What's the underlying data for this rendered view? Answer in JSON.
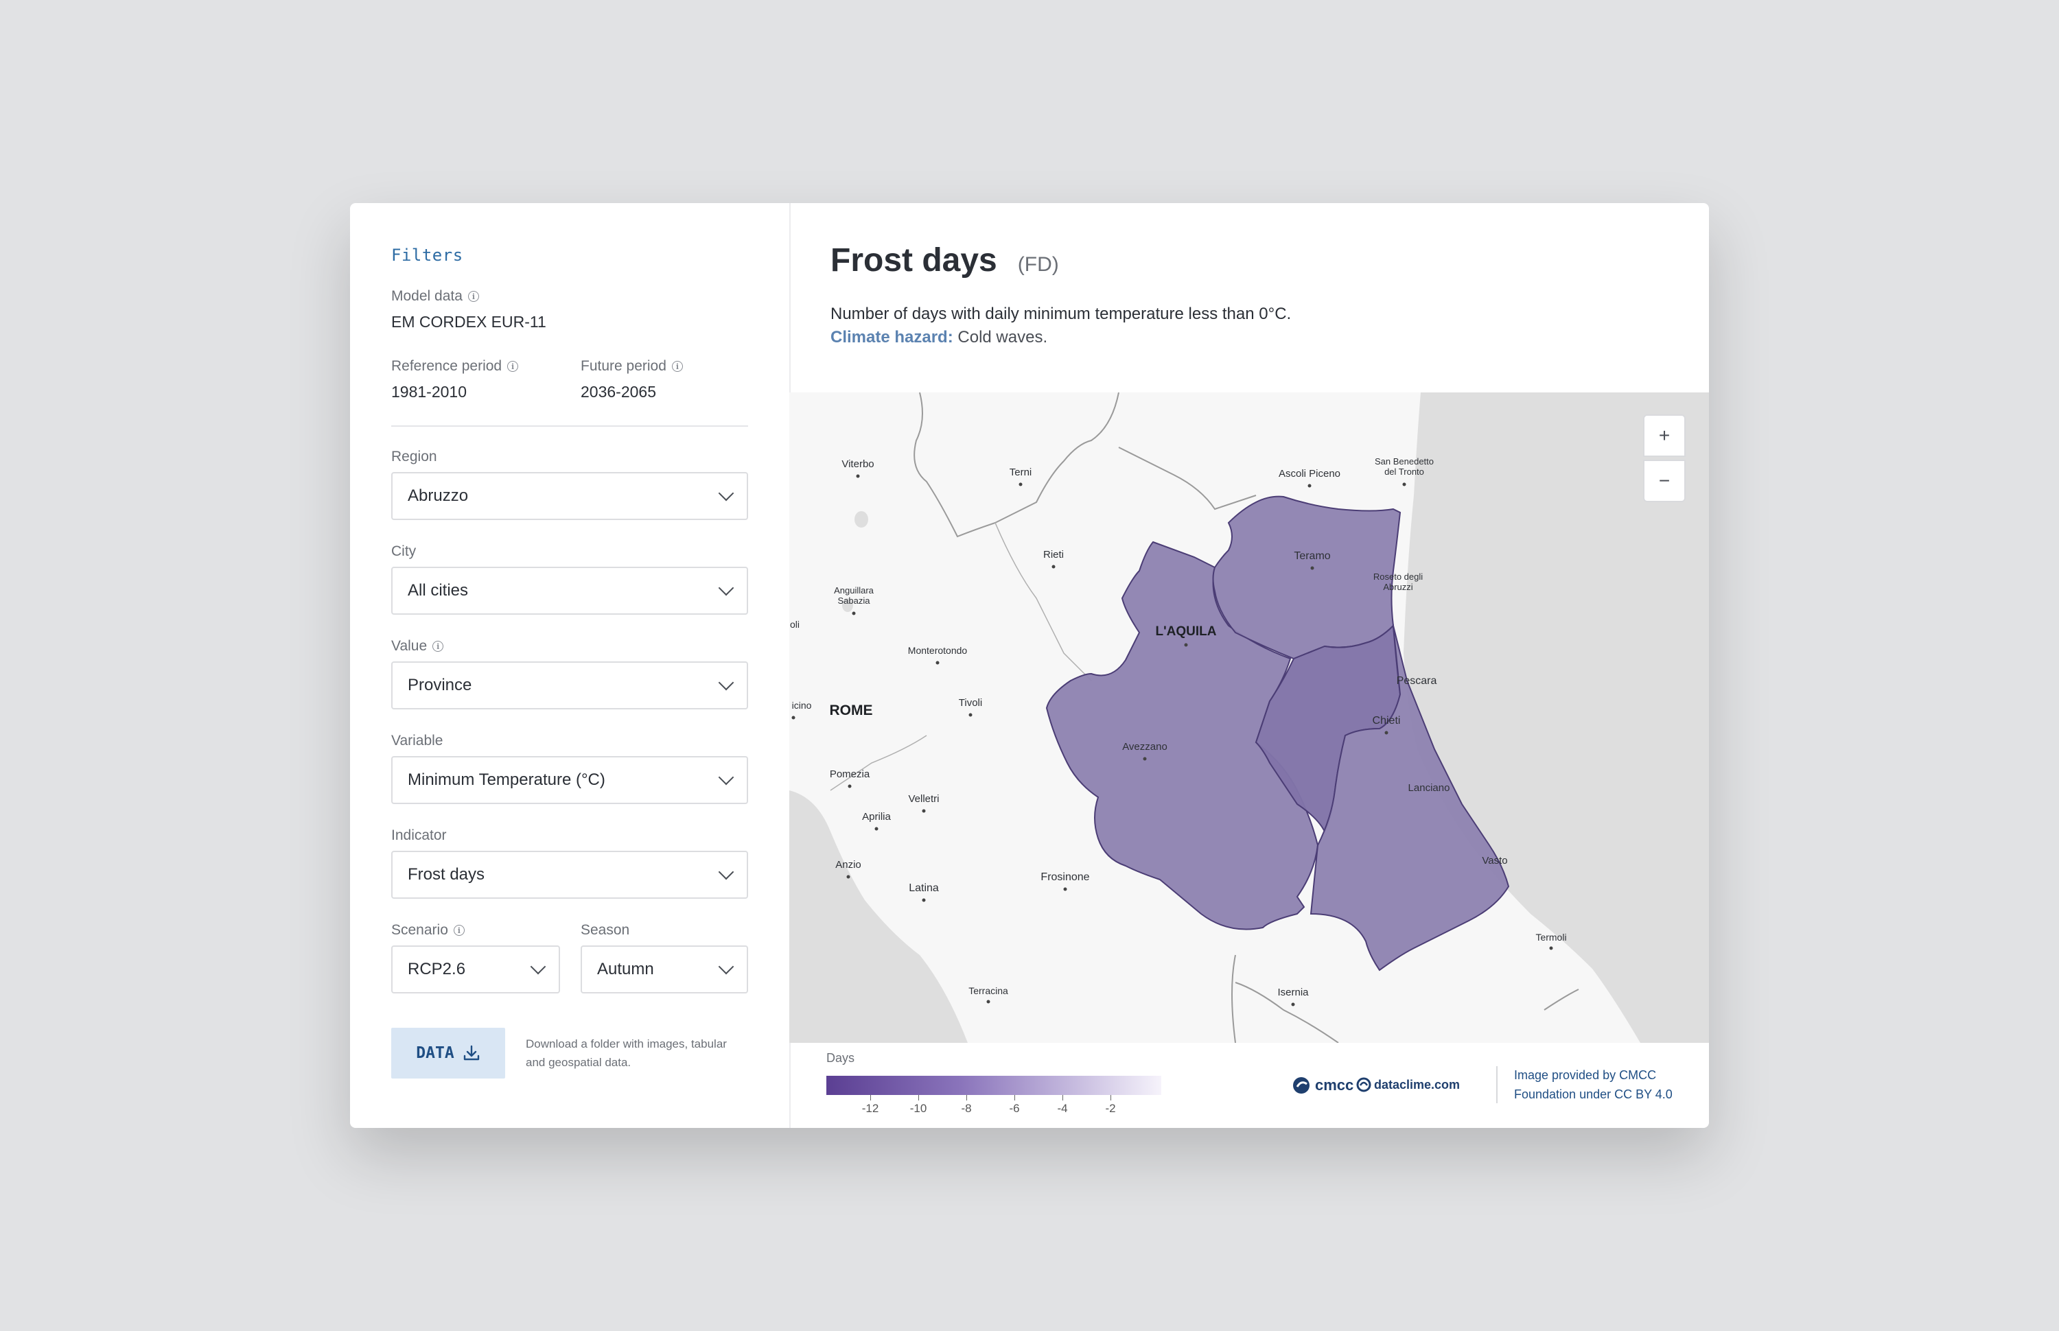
{
  "filters": {
    "heading": "Filters",
    "model_data": {
      "label": "Model data",
      "value": "EM CORDEX EUR-11"
    },
    "reference_period": {
      "label": "Reference period",
      "value": "1981-2010"
    },
    "future_period": {
      "label": "Future period",
      "value": "2036-2065"
    },
    "region": {
      "label": "Region",
      "value": "Abruzzo"
    },
    "city": {
      "label": "City",
      "value": "All cities"
    },
    "value": {
      "label": "Value",
      "value": "Province"
    },
    "variable": {
      "label": "Variable",
      "value": "Minimum Temperature (°C)"
    },
    "indicator": {
      "label": "Indicator",
      "value": "Frost days"
    },
    "scenario": {
      "label": "Scenario",
      "value": "RCP2.6"
    },
    "season": {
      "label": "Season",
      "value": "Autumn"
    },
    "data_button": {
      "label": "DATA",
      "description_line1": "Download a folder with images, tabular",
      "description_line2": "and geospatial data."
    }
  },
  "header": {
    "title": "Frost days",
    "code": "(FD)",
    "description": "Number of days with daily minimum temperature less than 0°C.",
    "hazard_label": "Climate hazard:",
    "hazard_value": "Cold waves."
  },
  "map": {
    "zoom_in": "+",
    "zoom_out": "−",
    "fill_color": "#8d82b0",
    "fill_color_dark": "#8174a8",
    "cities": {
      "viterbo": "Viterbo",
      "terni": "Terni",
      "ascoli": "Ascoli Piceno",
      "sanbenedetto1": "San Benedetto",
      "sanbenedetto2": "del Tronto",
      "rieti": "Rieti",
      "teramo": "Teramo",
      "roseto1": "Roseto degli",
      "roseto2": "Abruzzi",
      "anguillara1": "Anguillara",
      "anguillara2": "Sabazia",
      "laquila": "L'AQUILA",
      "oli": "oli",
      "monterotondo": "Monterotondo",
      "pescara": "Pescara",
      "icino": "icino",
      "rome": "ROME",
      "tivoli": "Tivoli",
      "chieti": "Chieti",
      "avezzano": "Avezzano",
      "pomezia": "Pomezia",
      "velletri": "Velletri",
      "lanciano": "Lanciano",
      "aprilia": "Aprilia",
      "anzio": "Anzio",
      "frosinone": "Frosinone",
      "vasto": "Vasto",
      "latina": "Latina",
      "termoli": "Termoli",
      "terracina": "Terracina",
      "isernia": "Isernia"
    }
  },
  "legend": {
    "title": "Days",
    "ticks": [
      "-12",
      "-10",
      "-8",
      "-6",
      "-4",
      "-2"
    ],
    "color_start": "#5b3f93",
    "color_end": "#f6f3fb"
  },
  "footer": {
    "logo_cmcc": "cmcc",
    "logo_dataclime": "dataclime.com",
    "credit_line1": "Image provided by CMCC",
    "credit_line2": "Foundation under CC BY 4.0"
  }
}
